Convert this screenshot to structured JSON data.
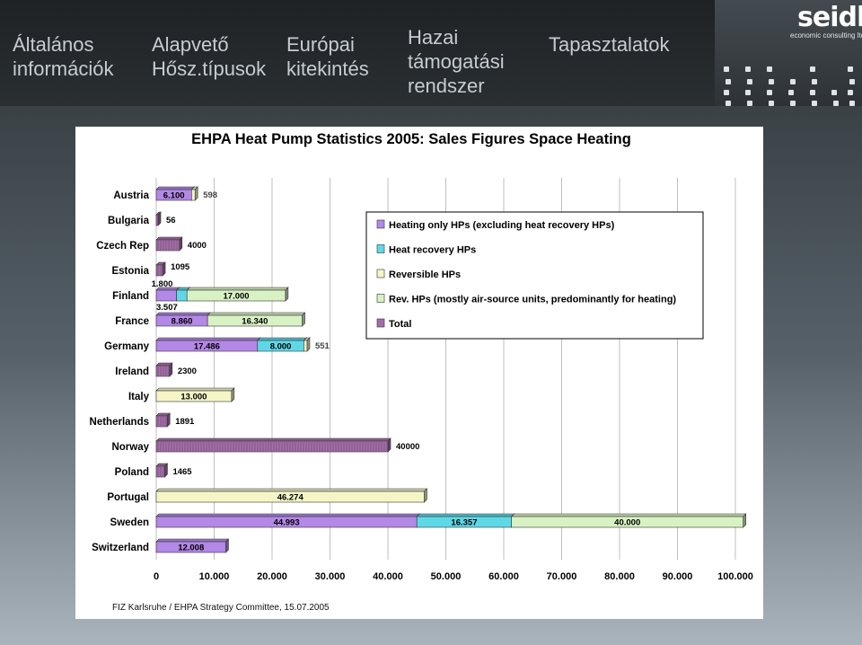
{
  "nav": [
    {
      "lines": [
        "Általános",
        "információk"
      ]
    },
    {
      "lines": [
        "Alapvető",
        "Hősz.típusok"
      ]
    },
    {
      "lines": [
        "Európai",
        "kitekintés"
      ]
    },
    {
      "lines": [
        "Hazai",
        "támogatási",
        "rendszer"
      ]
    },
    {
      "lines": [
        "Tapasztalatok"
      ]
    }
  ],
  "logo": {
    "name": "seidl",
    "tagline": "economic consulting ltd."
  },
  "footer_note": "FIZ Karlsruhe / EHPA Strategy Committee, 15.07.2005",
  "colors": {
    "heating_only": "#b388e6",
    "heat_recovery": "#5fd8e6",
    "reversible": "#f5f5c8",
    "rev_air": "#d8f2c4",
    "total": "#a56ea8"
  },
  "chart_data": {
    "type": "bar",
    "orientation": "horizontal",
    "stacked": true,
    "title": "EHPA Heat Pump Statistics 2005: Sales Figures Space Heating",
    "categories": [
      "Austria",
      "Bulgaria",
      "Czech Rep",
      "Estonia",
      "Finland",
      "France",
      "Germany",
      "Ireland",
      "Italy",
      "Netherlands",
      "Norway",
      "Poland",
      "Portugal",
      "Sweden",
      "Switzerland"
    ],
    "series": [
      {
        "name": "Heating only HPs (excluding heat recovery HPs)",
        "values": [
          6100,
          null,
          null,
          null,
          3507,
          8860,
          17486,
          null,
          null,
          null,
          null,
          null,
          null,
          44993,
          12008
        ],
        "labels": [
          "6.100",
          "",
          "",
          "",
          "3.507",
          "8.860",
          "17.486",
          "",
          "",
          "",
          "",
          "",
          "",
          "44.993",
          "12.008"
        ]
      },
      {
        "name": "Heat recovery HPs",
        "values": [
          null,
          null,
          null,
          null,
          1800,
          null,
          8000,
          null,
          null,
          null,
          null,
          null,
          null,
          16357,
          null
        ],
        "labels": [
          "",
          "",
          "",
          "",
          "1.800",
          "",
          "8.000",
          "",
          "",
          "",
          "",
          "",
          "",
          "16.357",
          ""
        ]
      },
      {
        "name": "Reversible HPs",
        "values": [
          598,
          null,
          null,
          null,
          null,
          null,
          551,
          null,
          13000,
          null,
          null,
          null,
          46274,
          null,
          null
        ],
        "labels": [
          "598",
          "",
          "",
          "",
          "",
          "",
          "551",
          "",
          "13.000",
          "",
          "",
          "",
          "46.274",
          "",
          ""
        ]
      },
      {
        "name": "Rev. HPs (mostly air-source units, predominantly for heating)",
        "values": [
          null,
          null,
          null,
          null,
          17000,
          16340,
          null,
          null,
          null,
          null,
          null,
          null,
          null,
          40000,
          null
        ],
        "labels": [
          "",
          "",
          "",
          "",
          "17.000",
          "16.340",
          "",
          "",
          "",
          "",
          "",
          "",
          "",
          "40.000",
          ""
        ]
      },
      {
        "name": "Total",
        "values": [
          null,
          56,
          4000,
          1095,
          null,
          null,
          null,
          2300,
          null,
          1891,
          40000,
          1465,
          null,
          null,
          null
        ],
        "labels": [
          "",
          "56",
          "4000",
          "1095",
          "",
          "",
          "",
          "2300",
          "",
          "1891",
          "40000",
          "1465",
          "",
          "",
          ""
        ]
      }
    ],
    "xlim": [
      0,
      100000
    ],
    "xticks": [
      "0",
      "10.000",
      "20.000",
      "30.000",
      "40.000",
      "50.000",
      "60.000",
      "70.000",
      "80.000",
      "90.000",
      "100.000"
    ],
    "legend": "upper-right",
    "grid": "vertical"
  }
}
